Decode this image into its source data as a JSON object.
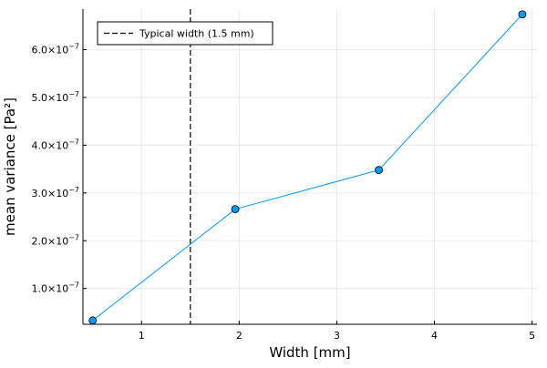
{
  "chart_data": {
    "type": "line",
    "xlabel": "Width [mm]",
    "ylabel": "mean variance [Pa²]",
    "xlim": [
      0.4,
      5.05
    ],
    "ylim": [
      2.5e-08,
      6.85e-07
    ],
    "xticks": [
      1,
      2,
      3,
      4,
      5
    ],
    "xtick_labels": [
      "1",
      "2",
      "3",
      "4",
      "5"
    ],
    "yticks": [
      1e-07,
      2e-07,
      3e-07,
      4e-07,
      5e-07,
      6e-07
    ],
    "ytick_labels": [
      {
        "mantissa": "1.0×10",
        "exp": "−7"
      },
      {
        "mantissa": "2.0×10",
        "exp": "−7"
      },
      {
        "mantissa": "3.0×10",
        "exp": "−7"
      },
      {
        "mantissa": "4.0×10",
        "exp": "−7"
      },
      {
        "mantissa": "5.0×10",
        "exp": "−7"
      },
      {
        "mantissa": "6.0×10",
        "exp": "−7"
      }
    ],
    "grid": true,
    "legend_position": "top-left",
    "series": [
      {
        "x": [
          0.5,
          1.96,
          3.43,
          4.9
        ],
        "y": [
          3.3e-08,
          2.66e-07,
          3.48e-07,
          6.74e-07
        ],
        "color": "#009AFA",
        "marker": "circle"
      }
    ],
    "annotations": [
      {
        "type": "vline",
        "x": 1.5,
        "style": "dashed",
        "color": "#000000",
        "label": "Typical width (1.5 mm)"
      }
    ]
  }
}
